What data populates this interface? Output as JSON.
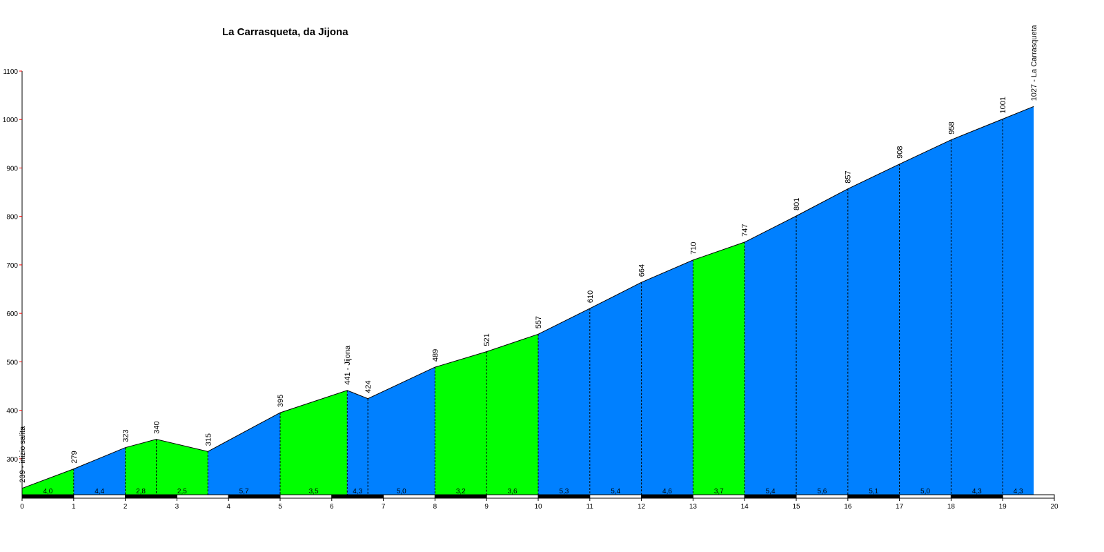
{
  "chart_data": {
    "type": "area",
    "title": "La Carrasqueta, da Jijona",
    "xlabel": "",
    "ylabel": "",
    "xlim": [
      0,
      20
    ],
    "ylim": [
      220,
      1100
    ],
    "x_ticks": [
      "0",
      "1",
      "2",
      "3",
      "4",
      "5",
      "6",
      "7",
      "8",
      "9",
      "10",
      "11",
      "12",
      "13",
      "14",
      "15",
      "16",
      "17",
      "18",
      "19",
      "20"
    ],
    "y_ticks": [
      "300",
      "400",
      "500",
      "600",
      "700",
      "800",
      "900",
      "1000",
      "1100"
    ],
    "y_tick_values": [
      300,
      400,
      500,
      600,
      700,
      800,
      900,
      1000,
      1100
    ],
    "colors": {
      "steep": "#00ff00",
      "normal": "#0080ff",
      "outline": "#000000"
    },
    "points": [
      {
        "x": 0,
        "y": 239,
        "label": "239 - inizio salita"
      },
      {
        "x": 1,
        "y": 279,
        "label": "279"
      },
      {
        "x": 2,
        "y": 323,
        "label": "323"
      },
      {
        "x": 2.6,
        "y": 340,
        "label": "340"
      },
      {
        "x": 3.6,
        "y": 315,
        "label": "315"
      },
      {
        "x": 5,
        "y": 395,
        "label": "395"
      },
      {
        "x": 6.3,
        "y": 441,
        "label": "441 - Jijona"
      },
      {
        "x": 6.7,
        "y": 424,
        "label": "424"
      },
      {
        "x": 8,
        "y": 489,
        "label": "489"
      },
      {
        "x": 9,
        "y": 521,
        "label": "521"
      },
      {
        "x": 10,
        "y": 557,
        "label": "557"
      },
      {
        "x": 11,
        "y": 610,
        "label": "610"
      },
      {
        "x": 12,
        "y": 664,
        "label": "664"
      },
      {
        "x": 13,
        "y": 710,
        "label": "710"
      },
      {
        "x": 14,
        "y": 747,
        "label": "747"
      },
      {
        "x": 15,
        "y": 801,
        "label": "801"
      },
      {
        "x": 16,
        "y": 857,
        "label": "857"
      },
      {
        "x": 17,
        "y": 908,
        "label": "908"
      },
      {
        "x": 18,
        "y": 958,
        "label": "958"
      },
      {
        "x": 19,
        "y": 1001,
        "label": "1001"
      },
      {
        "x": 19.6,
        "y": 1027,
        "label": "1027 - La Carrasqueta"
      }
    ],
    "segments": [
      {
        "from": 0,
        "to": 1,
        "gradient": "4,0",
        "color": "steep"
      },
      {
        "from": 1,
        "to": 2,
        "gradient": "4,4",
        "color": "normal"
      },
      {
        "from": 2,
        "to": 2.6,
        "gradient": "2,8",
        "color": "steep"
      },
      {
        "from": 2.6,
        "to": 3.6,
        "gradient": "2,5",
        "color": "steep"
      },
      {
        "from": 3.6,
        "to": 5,
        "gradient": "5,7",
        "color": "normal"
      },
      {
        "from": 5,
        "to": 6.3,
        "gradient": "3,5",
        "color": "steep"
      },
      {
        "from": 6.3,
        "to": 6.7,
        "gradient": "4,3",
        "color": "normal"
      },
      {
        "from": 6.7,
        "to": 8,
        "gradient": "5,0",
        "color": "normal"
      },
      {
        "from": 8,
        "to": 9,
        "gradient": "3,2",
        "color": "steep"
      },
      {
        "from": 9,
        "to": 10,
        "gradient": "3,6",
        "color": "steep"
      },
      {
        "from": 10,
        "to": 11,
        "gradient": "5,3",
        "color": "normal"
      },
      {
        "from": 11,
        "to": 12,
        "gradient": "5,4",
        "color": "normal"
      },
      {
        "from": 12,
        "to": 13,
        "gradient": "4,6",
        "color": "normal"
      },
      {
        "from": 13,
        "to": 14,
        "gradient": "3,7",
        "color": "steep"
      },
      {
        "from": 14,
        "to": 15,
        "gradient": "5,4",
        "color": "normal"
      },
      {
        "from": 15,
        "to": 16,
        "gradient": "5,6",
        "color": "normal"
      },
      {
        "from": 16,
        "to": 17,
        "gradient": "5,1",
        "color": "normal"
      },
      {
        "from": 17,
        "to": 18,
        "gradient": "5,0",
        "color": "normal"
      },
      {
        "from": 18,
        "to": 19,
        "gradient": "4,3",
        "color": "normal"
      },
      {
        "from": 19,
        "to": 19.6,
        "gradient": "4,3",
        "color": "normal"
      }
    ],
    "grid": false,
    "legend": "none"
  }
}
